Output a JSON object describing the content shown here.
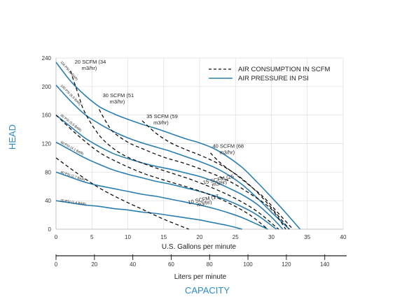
{
  "chart_data": {
    "type": "line",
    "title": "",
    "xlabel": "U.S. Gallons per minute",
    "ylabel": "HEAD",
    "secondary_xlabel": "Liters per minute",
    "capacity_label": "CAPACITY",
    "xlim": [
      0,
      40
    ],
    "ylim": [
      0,
      240
    ],
    "x_ticks": [
      "0",
      "5",
      "10",
      "15",
      "20",
      "25",
      "30",
      "35",
      "40"
    ],
    "y_ticks": [
      "0",
      "40",
      "80",
      "120",
      "160",
      "200",
      "240"
    ],
    "secondary_x_ticks": [
      "0",
      "20",
      "40",
      "60",
      "80",
      "100",
      "120",
      "140"
    ],
    "secondary_x_tick_values": [
      0,
      20,
      40,
      60,
      80,
      100,
      120,
      140
    ],
    "grid": true,
    "legend_position": "top-right",
    "legend": [
      {
        "label": "AIR CONSUMPTION IN SCFM",
        "style": "dashed"
      },
      {
        "label": "AIR PRESSURE IN PSI",
        "style": "solid"
      }
    ],
    "colors": {
      "pressure": "#2b7fb0",
      "consumption": "#111111",
      "accent": "#2b8bc6"
    },
    "pressure_series": [
      {
        "label": "116 PSI (8 BAR)",
        "x": [
          0,
          2,
          4,
          6,
          8,
          10,
          12,
          14,
          16,
          18,
          20,
          22,
          24,
          26,
          28,
          30,
          32,
          34
        ],
        "y": [
          234,
          208,
          188,
          172,
          162,
          154,
          147,
          141,
          134,
          127,
          121,
          113,
          101,
          86,
          66,
          45,
          23,
          0
        ]
      },
      {
        "label": "100 PSI (6.9 BAR)",
        "x": [
          0,
          2,
          4,
          6,
          8,
          10,
          12,
          14,
          16,
          18,
          20,
          22,
          24,
          26,
          28,
          30,
          32.5
        ],
        "y": [
          202,
          180,
          161,
          148,
          137,
          128,
          121,
          115,
          109,
          102,
          95,
          87,
          76,
          62,
          44,
          24,
          0
        ]
      },
      {
        "label": "80 PSI (5.5 BAR)",
        "x": [
          0,
          2,
          4,
          6,
          8,
          10,
          12,
          14,
          16,
          18,
          20,
          22,
          24,
          26,
          28,
          30,
          31.6
        ],
        "y": [
          160,
          144,
          128,
          116,
          106,
          99,
          93,
          88,
          84,
          79,
          74,
          67,
          58,
          48,
          35,
          17,
          0
        ]
      },
      {
        "label": "60 PSI (4.1 BAR)",
        "x": [
          0,
          2,
          4,
          6,
          8,
          10,
          12,
          14,
          16,
          18,
          20,
          22,
          24,
          26,
          28,
          30.7
        ],
        "y": [
          122,
          111,
          100,
          91,
          83,
          77,
          72,
          67,
          63,
          58,
          53,
          47,
          40,
          31,
          20,
          0
        ]
      },
      {
        "label": "40 PSI (2.7 BAR)",
        "x": [
          0,
          2,
          4,
          6,
          8,
          10,
          12,
          14,
          16,
          18,
          20,
          22,
          24,
          26,
          28,
          29.5
        ],
        "y": [
          80,
          73,
          66,
          61,
          57,
          53,
          49,
          46,
          42,
          38,
          34,
          29,
          23,
          16,
          7,
          0
        ]
      },
      {
        "label": "20 PSI (1.4 BAR)",
        "x": [
          0,
          2,
          4,
          6,
          8,
          10,
          12,
          14,
          16,
          18,
          20,
          22,
          24,
          25.9
        ],
        "y": [
          40,
          37,
          34,
          32,
          29,
          27,
          24,
          22,
          19,
          16,
          13,
          9,
          5,
          0
        ]
      }
    ],
    "consumption_series": [
      {
        "label": "10 SCFM (17 m3/hr)",
        "line1": "10 SCFM (17",
        "line2": "m3/hr)",
        "x": [
          0,
          3,
          6,
          9,
          12,
          15,
          18.5
        ],
        "y": [
          100,
          78,
          58,
          42,
          28,
          14,
          0
        ]
      },
      {
        "label": "15 SCFM (25 m3/hr)",
        "line1": "15 SCFM (25",
        "line2": "m3/hr)",
        "x": [
          0,
          3,
          6,
          9,
          12,
          15,
          18,
          21,
          24,
          27,
          29.5
        ],
        "y": [
          160,
          132,
          108,
          92,
          79,
          69,
          60,
          50,
          37,
          20,
          0
        ]
      },
      {
        "label": "20 SCFM (34 m3/hr)",
        "line1": "20 SCFM (34",
        "line2": "m3/hr)",
        "x": [
          2,
          3,
          4,
          6,
          8,
          10,
          13,
          16,
          19,
          22,
          25,
          28,
          31
        ],
        "y": [
          222,
          192,
          164,
          132,
          113,
          101,
          89,
          79,
          69,
          57,
          43,
          25,
          0
        ]
      },
      {
        "label": "30 SCFM (51 m3/hr)",
        "line1": "30 SCFM (51",
        "line2": "m3/hr)",
        "x": [
          6,
          7,
          8,
          10,
          12,
          15,
          18,
          21,
          24,
          27,
          30,
          32
        ],
        "y": [
          168,
          150,
          136,
          122,
          113,
          101,
          92,
          81,
          68,
          50,
          28,
          0
        ]
      },
      {
        "label": "35 SCFM (59 m3/hr)",
        "line1": "35 SCFM (59",
        "line2": "m3/hr)",
        "x": [
          12,
          14,
          16,
          18,
          20,
          22,
          24,
          26,
          28,
          30,
          32.5
        ],
        "y": [
          152,
          134,
          121,
          112,
          104,
          95,
          84,
          70,
          52,
          30,
          0
        ]
      },
      {
        "label": "40 SCFM (68 m3/hr)",
        "line1": "40 SCFM (68",
        "line2": "m3/hr)",
        "x": [
          21.5,
          23,
          25,
          27,
          29,
          31,
          33
        ],
        "y": [
          107,
          92,
          77,
          61,
          44,
          22,
          0
        ]
      }
    ]
  }
}
